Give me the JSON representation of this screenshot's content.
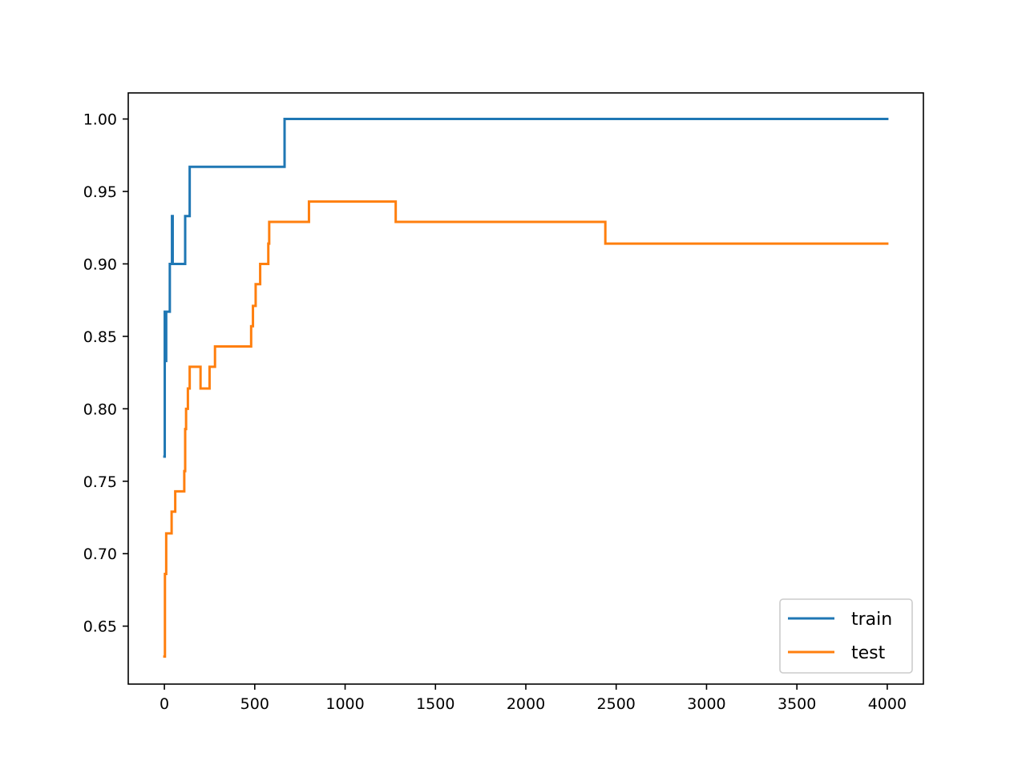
{
  "chart_data": {
    "type": "line",
    "title": "",
    "xlabel": "",
    "ylabel": "",
    "xlim": [
      -200,
      4200
    ],
    "ylim": [
      0.61,
      1.018
    ],
    "xticks": [
      0,
      500,
      1000,
      1500,
      2000,
      2500,
      3000,
      3500,
      4000
    ],
    "xtick_labels": [
      "0",
      "500",
      "1000",
      "1500",
      "2000",
      "2500",
      "3000",
      "3500",
      "4000"
    ],
    "yticks": [
      0.65,
      0.7,
      0.75,
      0.8,
      0.85,
      0.9,
      0.95,
      1.0
    ],
    "ytick_labels": [
      "0.65",
      "0.70",
      "0.75",
      "0.80",
      "0.85",
      "0.90",
      "0.95",
      "1.00"
    ],
    "grid": false,
    "legend_position": "lower-right",
    "step": "post",
    "series": [
      {
        "name": "train",
        "color": "#1f77b4",
        "x": [
          0,
          2,
          4,
          6,
          8,
          10,
          14,
          18,
          22,
          30,
          40,
          42,
          46,
          48,
          55,
          100,
          115,
          120,
          135,
          140,
          660,
          665,
          4000
        ],
        "values": [
          0.767,
          0.867,
          0.833,
          0.867,
          0.833,
          0.867,
          0.867,
          0.867,
          0.867,
          0.9,
          0.9,
          0.933,
          0.9,
          0.9,
          0.9,
          0.9,
          0.933,
          0.933,
          0.933,
          0.967,
          0.967,
          1.0,
          1.0
        ]
      },
      {
        "name": "test",
        "color": "#ff7f0e",
        "x": [
          0,
          3,
          6,
          10,
          20,
          30,
          40,
          50,
          60,
          80,
          100,
          110,
          115,
          120,
          130,
          140,
          200,
          250,
          280,
          300,
          480,
          490,
          500,
          505,
          510,
          530,
          560,
          575,
          580,
          600,
          800,
          810,
          1280,
          1290,
          2440,
          2450,
          4000
        ],
        "values": [
          0.629,
          0.686,
          0.686,
          0.714,
          0.714,
          0.714,
          0.729,
          0.729,
          0.743,
          0.743,
          0.743,
          0.757,
          0.786,
          0.8,
          0.814,
          0.829,
          0.814,
          0.829,
          0.843,
          0.843,
          0.857,
          0.871,
          0.871,
          0.886,
          0.886,
          0.9,
          0.9,
          0.914,
          0.929,
          0.929,
          0.943,
          0.943,
          0.929,
          0.929,
          0.914,
          0.914,
          0.914
        ]
      }
    ]
  }
}
